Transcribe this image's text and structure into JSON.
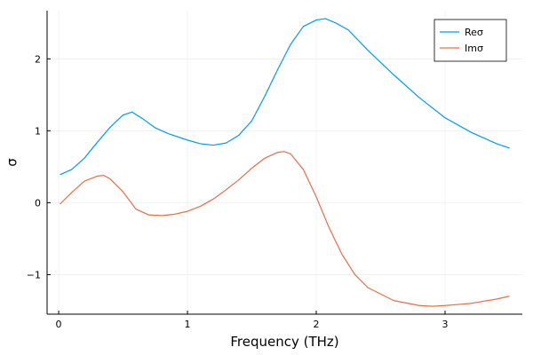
{
  "chart_data": {
    "type": "line",
    "xlabel": "Frequency (THz)",
    "ylabel": "σ",
    "xlim": [
      -0.09,
      3.6
    ],
    "ylim": [
      -1.55,
      2.67
    ],
    "xticks": [
      0,
      1,
      2,
      3
    ],
    "yticks": [
      -1,
      0,
      1,
      2
    ],
    "xtick_labels": [
      "0",
      "1",
      "2",
      "3"
    ],
    "ytick_labels": [
      "−1",
      "0",
      "1",
      "2"
    ],
    "grid": true,
    "legend_position": "top-right",
    "series": [
      {
        "name": "Reσ",
        "color": "#009AFA",
        "x": [
          0.01,
          0.1,
          0.2,
          0.3,
          0.4,
          0.5,
          0.57,
          0.65,
          0.75,
          0.85,
          1.0,
          1.1,
          1.2,
          1.3,
          1.4,
          1.5,
          1.6,
          1.7,
          1.8,
          1.9,
          2.0,
          2.07,
          2.15,
          2.25,
          2.4,
          2.6,
          2.8,
          3.0,
          3.2,
          3.4,
          3.5
        ],
        "y": [
          0.39,
          0.46,
          0.62,
          0.84,
          1.05,
          1.22,
          1.26,
          1.17,
          1.04,
          0.96,
          0.87,
          0.82,
          0.8,
          0.83,
          0.94,
          1.14,
          1.48,
          1.85,
          2.2,
          2.45,
          2.54,
          2.56,
          2.5,
          2.4,
          2.12,
          1.78,
          1.46,
          1.18,
          0.98,
          0.82,
          0.76
        ]
      },
      {
        "name": "Imσ",
        "color": "#E36F47",
        "x": [
          0.01,
          0.1,
          0.2,
          0.3,
          0.35,
          0.4,
          0.5,
          0.6,
          0.7,
          0.8,
          0.9,
          1.0,
          1.1,
          1.2,
          1.3,
          1.4,
          1.5,
          1.6,
          1.7,
          1.75,
          1.8,
          1.9,
          2.0,
          2.1,
          2.2,
          2.3,
          2.4,
          2.6,
          2.8,
          2.9,
          3.0,
          3.2,
          3.4,
          3.5
        ],
        "y": [
          -0.02,
          0.14,
          0.3,
          0.37,
          0.38,
          0.33,
          0.15,
          -0.09,
          -0.17,
          -0.18,
          -0.16,
          -0.12,
          -0.05,
          0.05,
          0.18,
          0.32,
          0.48,
          0.62,
          0.7,
          0.71,
          0.68,
          0.46,
          0.08,
          -0.35,
          -0.72,
          -1.0,
          -1.18,
          -1.36,
          -1.43,
          -1.44,
          -1.43,
          -1.4,
          -1.34,
          -1.3
        ]
      }
    ]
  }
}
